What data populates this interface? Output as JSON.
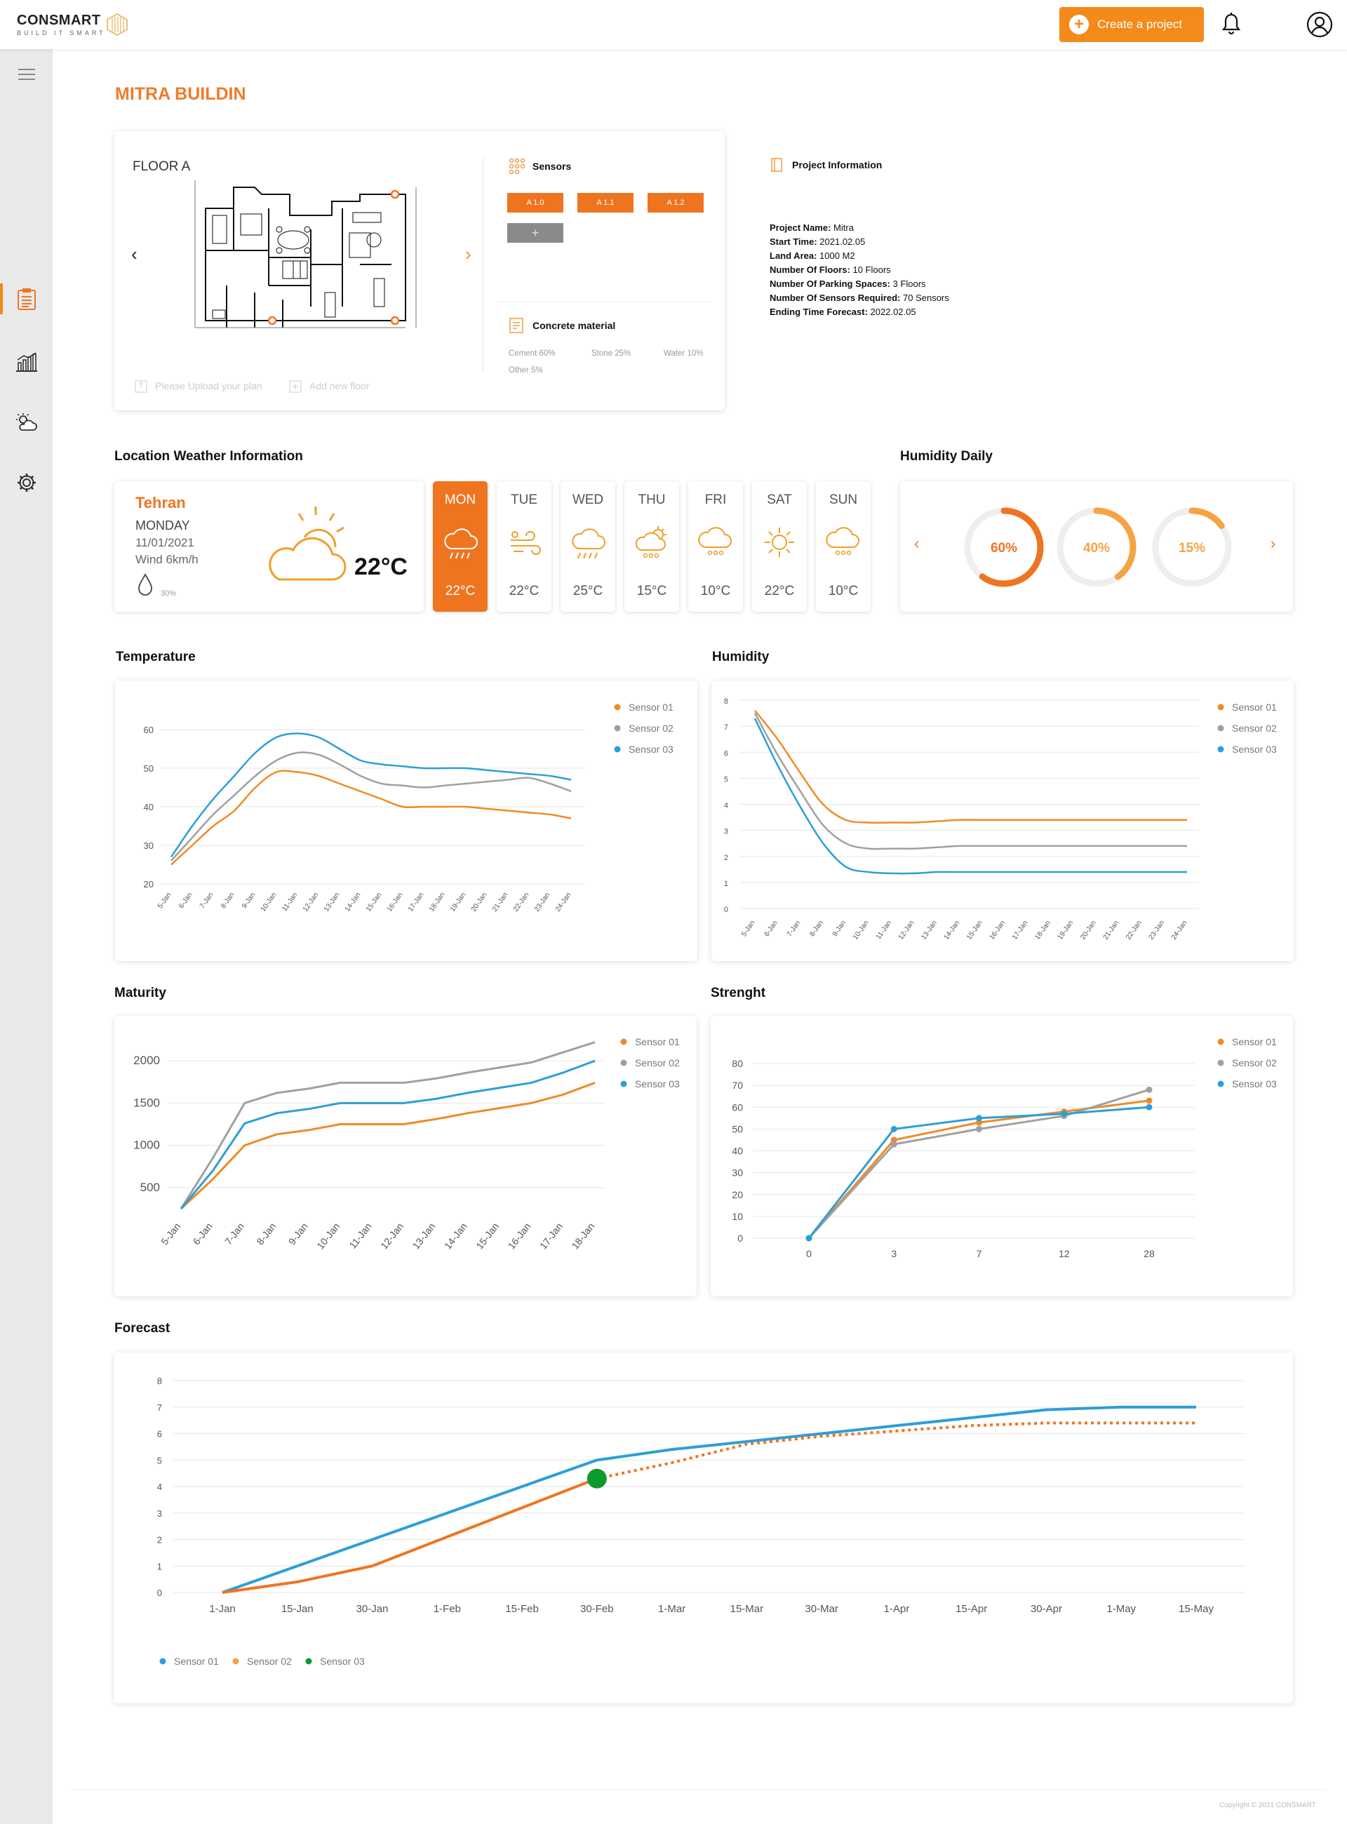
{
  "header": {
    "brand": "CONSMART",
    "tagline": "BUILD IT SMART",
    "create_label": "Create a project"
  },
  "page_title": "MITRA BUILDIN",
  "floor": {
    "label": "FLOOR A",
    "upload_label": "Please Upload your plan",
    "add_floor_label": "Add new floor"
  },
  "sensors": {
    "title": "Sensors",
    "buttons": [
      "A 1.0",
      "A 1.1",
      "A 1.2"
    ],
    "add": "+"
  },
  "concrete": {
    "title": "Concrete material",
    "items": [
      "Cement 60%",
      "Stone 25%",
      "Water 10%",
      "Other 5%"
    ]
  },
  "project": {
    "title": "Project Information",
    "rows": [
      {
        "k": "Project Name:",
        "v": "Mitra"
      },
      {
        "k": "Start Time:",
        "v": "2021.02.05"
      },
      {
        "k": "Land Area:",
        "v": "1000 M2"
      },
      {
        "k": "Number Of Floors:",
        "v": "10 Floors"
      },
      {
        "k": "Number Of Parking Spaces:",
        "v": "3 Floors"
      },
      {
        "k": "Number Of Sensors Required:",
        "v": "70 Sensors"
      },
      {
        "k": "Ending Time Forecast:",
        "v": "2022.02.05"
      }
    ]
  },
  "weather": {
    "section_title": "Location Weather Information",
    "city": "Tehran",
    "day": "MONDAY",
    "date": "11/01/2021",
    "wind": "Wind 6km/h",
    "humidity": "30%",
    "temp": "22°C",
    "days": [
      {
        "d": "MON",
        "t": "22°C",
        "icon": "rain-cloud-icon"
      },
      {
        "d": "TUE",
        "t": "22°C",
        "icon": "wind-icon"
      },
      {
        "d": "WED",
        "t": "25°C",
        "icon": "rain-cloud-icon"
      },
      {
        "d": "THU",
        "t": "15°C",
        "icon": "sun-cloud-rain-icon"
      },
      {
        "d": "FRI",
        "t": "10°C",
        "icon": "hail-cloud-icon"
      },
      {
        "d": "SAT",
        "t": "22°C",
        "icon": "sun-icon"
      },
      {
        "d": "SUN",
        "t": "10°C",
        "icon": "hail-cloud-icon"
      }
    ]
  },
  "humidity_daily": {
    "title": "Humidity Daily",
    "values": [
      60,
      40,
      15
    ],
    "labels": [
      "60%",
      "40%",
      "15%"
    ]
  },
  "colors": {
    "s1": "#ef8b26",
    "s2": "#a0a0a0",
    "s3": "#2c9fd6",
    "orange": "#ef7420",
    "green": "#0e9a2e"
  },
  "sensor_legend": [
    "Sensor 01",
    "Sensor 02",
    "Sensor 03"
  ],
  "chart_data": [
    {
      "id": "temperature",
      "type": "line",
      "title": "Temperature",
      "categories": [
        "5-Jan",
        "6-Jan",
        "7-Jan",
        "8-Jan",
        "9-Jan",
        "10-Jan",
        "11-Jan",
        "12-Jan",
        "13-Jan",
        "14-Jan",
        "15-Jan",
        "16-Jan",
        "17-Jan",
        "18-Jan",
        "19-Jan",
        "20-Jan",
        "21-Jan",
        "22-Jan",
        "23-Jan",
        "24-Jan"
      ],
      "ylim": [
        20,
        60
      ],
      "yticks": [
        20,
        30,
        40,
        50,
        60
      ],
      "series": [
        {
          "name": "Sensor 01",
          "values": [
            25,
            30,
            35,
            39,
            45,
            49,
            49,
            48,
            46,
            44,
            42,
            40,
            40,
            40,
            40,
            39.5,
            39,
            38.5,
            38,
            37
          ]
        },
        {
          "name": "Sensor 02",
          "values": [
            26,
            32,
            38,
            43,
            48,
            52,
            54,
            53.5,
            51,
            48,
            46,
            45.5,
            45,
            45.5,
            46,
            46.5,
            47,
            47.5,
            46,
            44
          ]
        },
        {
          "name": "Sensor 03",
          "values": [
            27,
            35,
            42,
            48,
            54,
            58,
            59,
            58,
            55,
            52,
            51,
            50.5,
            50,
            50,
            50,
            49.5,
            49,
            48.5,
            48,
            47
          ]
        }
      ]
    },
    {
      "id": "humidity",
      "type": "line",
      "title": "Humidity",
      "categories": [
        "5-Jan",
        "6-Jan",
        "7-Jan",
        "8-Jan",
        "9-Jan",
        "10-Jan",
        "11-Jan",
        "12-Jan",
        "13-Jan",
        "14-Jan",
        "15-Jan",
        "16-Jan",
        "17-Jan",
        "18-Jan",
        "19-Jan",
        "20-Jan",
        "21-Jan",
        "22-Jan",
        "23-Jan",
        "24-Jan"
      ],
      "ylim": [
        0,
        8
      ],
      "yticks": [
        0,
        1,
        2,
        3,
        4,
        5,
        6,
        7,
        8
      ],
      "series": [
        {
          "name": "Sensor 01",
          "values": [
            7.6,
            6.5,
            5.2,
            4,
            3.4,
            3.3,
            3.3,
            3.3,
            3.35,
            3.4,
            3.4,
            3.4,
            3.4,
            3.4,
            3.4,
            3.4,
            3.4,
            3.4,
            3.4,
            3.4
          ]
        },
        {
          "name": "Sensor 02",
          "values": [
            7.5,
            5.9,
            4.5,
            3.2,
            2.5,
            2.3,
            2.3,
            2.3,
            2.35,
            2.4,
            2.4,
            2.4,
            2.4,
            2.4,
            2.4,
            2.4,
            2.4,
            2.4,
            2.4,
            2.4
          ]
        },
        {
          "name": "Sensor 03",
          "values": [
            7.3,
            5.5,
            3.9,
            2.5,
            1.6,
            1.4,
            1.35,
            1.35,
            1.4,
            1.4,
            1.4,
            1.4,
            1.4,
            1.4,
            1.4,
            1.4,
            1.4,
            1.4,
            1.4,
            1.4
          ]
        }
      ]
    },
    {
      "id": "maturity",
      "type": "line",
      "title": "Maturity",
      "categories": [
        "5-Jan",
        "6-Jan",
        "7-Jan",
        "8-Jan",
        "9-Jan",
        "10-Jan",
        "11-Jan",
        "12-Jan",
        "13-Jan",
        "14-Jan",
        "15-Jan",
        "16-Jan",
        "17-Jan",
        "18-Jan"
      ],
      "ylim": [
        250,
        2200
      ],
      "yticks": [
        500,
        1000,
        1500,
        2000
      ],
      "series": [
        {
          "name": "Sensor 01",
          "values": [
            250,
            600,
            1000,
            1130,
            1180,
            1250,
            1250,
            1250,
            1310,
            1380,
            1440,
            1500,
            1600,
            1740
          ]
        },
        {
          "name": "Sensor 02",
          "values": [
            250,
            850,
            1500,
            1620,
            1670,
            1740,
            1740,
            1740,
            1790,
            1860,
            1920,
            1980,
            2100,
            2220
          ]
        },
        {
          "name": "Sensor 03",
          "values": [
            250,
            700,
            1260,
            1380,
            1430,
            1500,
            1500,
            1500,
            1550,
            1620,
            1680,
            1740,
            1860,
            2000
          ]
        }
      ]
    },
    {
      "id": "strength",
      "type": "line",
      "title": "Strenght",
      "categories": [
        "0",
        "3",
        "7",
        "12",
        "28"
      ],
      "ylim": [
        0,
        80
      ],
      "yticks": [
        0,
        10,
        20,
        30,
        40,
        50,
        60,
        70,
        80
      ],
      "series": [
        {
          "name": "Sensor 01",
          "values": [
            0,
            45,
            53,
            58,
            63
          ]
        },
        {
          "name": "Sensor 02",
          "values": [
            0,
            43,
            50,
            56,
            68
          ]
        },
        {
          "name": "Sensor 03",
          "values": [
            0,
            50,
            55,
            57,
            60
          ]
        }
      ]
    },
    {
      "id": "forecast",
      "type": "line",
      "title": "Forecast",
      "categories": [
        "1-Jan",
        "15-Jan",
        "30-Jan",
        "1-Feb",
        "15-Feb",
        "30-Feb",
        "1-Mar",
        "15-Mar",
        "30-Mar",
        "1-Apr",
        "15-Apr",
        "30-Apr",
        "1-May",
        "15-May"
      ],
      "ylim": [
        0,
        8
      ],
      "yticks": [
        0,
        1,
        2,
        3,
        4,
        5,
        6,
        7,
        8
      ],
      "series": [
        {
          "name": "Sensor 01",
          "values": [
            0,
            1,
            2,
            3,
            4,
            5,
            5.4,
            5.7,
            6,
            6.3,
            6.6,
            6.9,
            7,
            7
          ]
        },
        {
          "name": "Sensor 02",
          "values": [
            0,
            0.4,
            1,
            2.1,
            3.2,
            4.3,
            4.9,
            5.6,
            5.9,
            6.1,
            6.3,
            6.4,
            6.4,
            6.4
          ],
          "dashed_from_index": 5
        },
        {
          "name": "Sensor 03",
          "point_index": 5,
          "point_value": 4.3
        }
      ],
      "legend": [
        "Sensor 01",
        "Sensor 02",
        "Sensor 03"
      ]
    }
  ],
  "footer": {
    "copyright": "Copyright © 2021 CONSMART"
  }
}
